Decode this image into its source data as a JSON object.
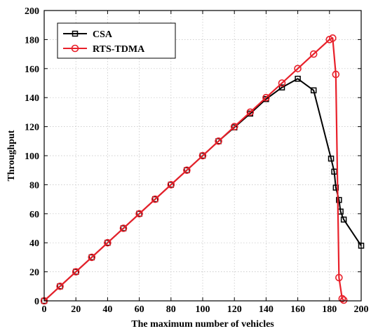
{
  "chart_data": {
    "type": "line",
    "title": "",
    "xlabel": "The maximum number of vehicles",
    "ylabel": "Throughput",
    "xlim": [
      0,
      200
    ],
    "ylim": [
      0,
      200
    ],
    "xticks": [
      0,
      20,
      40,
      60,
      80,
      100,
      120,
      140,
      160,
      180,
      200
    ],
    "yticks": [
      0,
      20,
      40,
      60,
      80,
      100,
      120,
      140,
      160,
      180,
      200
    ],
    "grid": true,
    "legend_position": "top-left",
    "series": [
      {
        "name": "CSA",
        "color": "#000000",
        "marker": "square",
        "x": [
          0,
          10,
          20,
          30,
          40,
          50,
          60,
          70,
          80,
          90,
          100,
          110,
          120,
          130,
          140,
          150,
          160,
          170,
          181,
          183,
          184,
          186,
          187,
          189,
          200
        ],
        "y": [
          0,
          10,
          20,
          30,
          40,
          50,
          60,
          70,
          80,
          90,
          100,
          110,
          119.5,
          129,
          139,
          147,
          153,
          145,
          98,
          89,
          78,
          69.5,
          61.5,
          56,
          38
        ]
      },
      {
        "name": "RTS-TDMA",
        "color": "#e8202a",
        "marker": "circle",
        "x": [
          0,
          10,
          20,
          30,
          40,
          50,
          60,
          70,
          80,
          90,
          100,
          110,
          120,
          130,
          140,
          150,
          160,
          170,
          180,
          182,
          184,
          186,
          188,
          189
        ],
        "y": [
          0,
          10,
          20,
          30,
          40,
          50,
          60,
          70,
          80,
          90,
          100,
          110,
          120,
          130,
          140,
          150,
          160,
          170,
          180,
          181,
          156,
          16,
          1.5,
          0.5
        ]
      }
    ]
  }
}
